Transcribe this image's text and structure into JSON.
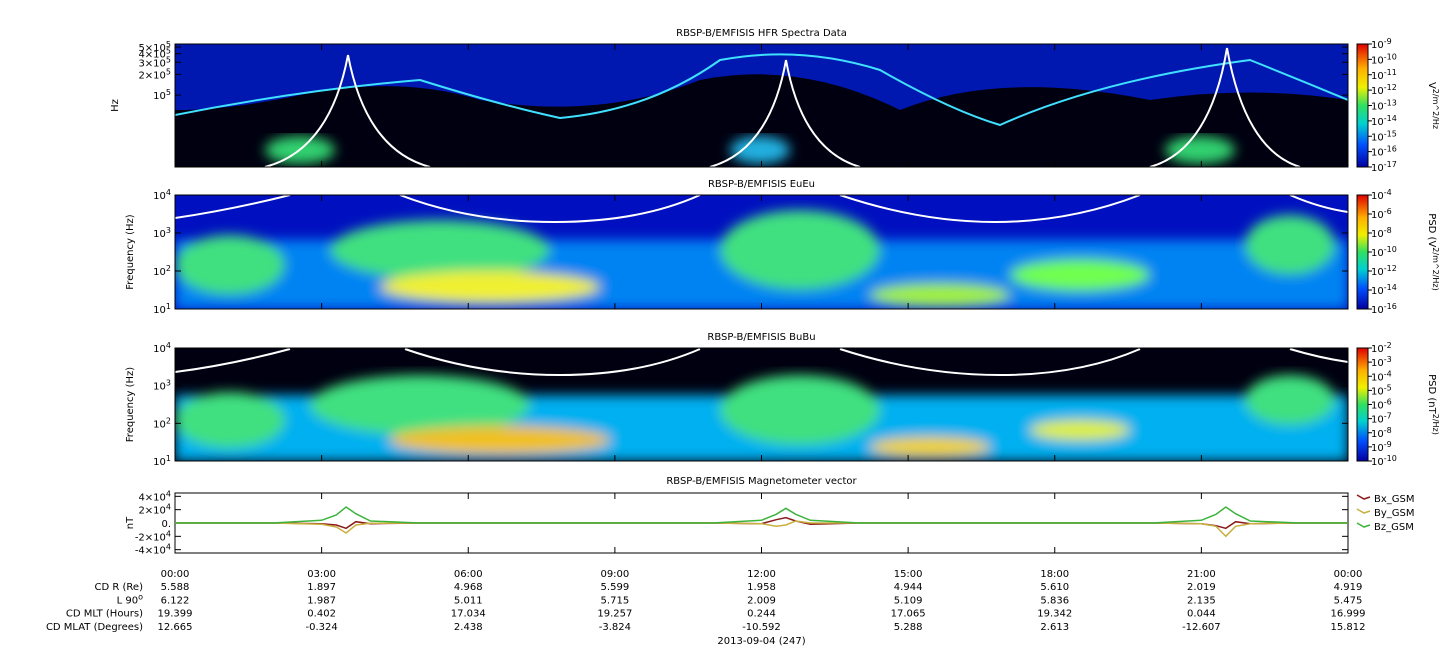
{
  "chart_data": [
    {
      "type": "spectrogram",
      "title": "RBSP-B/EMFISIS  HFR Spectra Data",
      "ylabel": "Hz",
      "zlabel": "V^2/m^2/Hz",
      "log_y": true,
      "ylim": [
        9000,
        553000
      ],
      "yticks": [
        {
          "value": 500000,
          "label": "5×10^5"
        },
        {
          "value": 400000,
          "label": "4×10^5"
        },
        {
          "value": 300000,
          "label": "3×10^5"
        },
        {
          "value": 200000,
          "label": "2×10^5"
        },
        {
          "value": 100000,
          "label": "10^5"
        }
      ],
      "zlim": [
        1e-17,
        1e-09
      ],
      "zticks": [
        {
          "value": 1e-09,
          "label": "10^-9"
        },
        {
          "value": 1e-10,
          "label": "10^-10"
        },
        {
          "value": 1e-11,
          "label": "10^-11"
        },
        {
          "value": 1e-12,
          "label": "10^-12"
        },
        {
          "value": 1e-13,
          "label": "10^-13"
        },
        {
          "value": 1e-14,
          "label": "10^-14"
        },
        {
          "value": 1e-15,
          "label": "10^-15"
        },
        {
          "value": 1e-16,
          "label": "10^-16"
        },
        {
          "value": 1e-17,
          "label": "10^-17"
        }
      ]
    },
    {
      "type": "spectrogram",
      "title": "RBSP-B/EMFISIS  EuEu",
      "ylabel": "Frequency (Hz)",
      "zlabel": "PSD (V^2/m^2/Hz)",
      "log_y": true,
      "ylim": [
        10,
        10000
      ],
      "yticks": [
        {
          "value": 10000,
          "label": "10^4"
        },
        {
          "value": 1000,
          "label": "10^3"
        },
        {
          "value": 100,
          "label": "10^2"
        },
        {
          "value": 10,
          "label": "10^1"
        }
      ],
      "zlim": [
        1e-16,
        0.0001
      ],
      "zticks": [
        {
          "value": 0.0001,
          "label": "10^-4"
        },
        {
          "value": 1e-06,
          "label": "10^-6"
        },
        {
          "value": 1e-08,
          "label": "10^-8"
        },
        {
          "value": 1e-10,
          "label": "10^-10"
        },
        {
          "value": 1e-12,
          "label": "10^-12"
        },
        {
          "value": 1e-14,
          "label": "10^-14"
        },
        {
          "value": 1e-16,
          "label": "10^-16"
        }
      ]
    },
    {
      "type": "spectrogram",
      "title": "RBSP-B/EMFISIS  BuBu",
      "ylabel": "Frequency (Hz)",
      "zlabel": "PSD (nT^2/Hz)",
      "log_y": true,
      "ylim": [
        10,
        10000
      ],
      "yticks": [
        {
          "value": 10000,
          "label": "10^4"
        },
        {
          "value": 1000,
          "label": "10^3"
        },
        {
          "value": 100,
          "label": "10^2"
        },
        {
          "value": 10,
          "label": "10^1"
        }
      ],
      "zlim": [
        1e-10,
        0.01
      ],
      "zticks": [
        {
          "value": 0.01,
          "label": "10^-2"
        },
        {
          "value": 0.001,
          "label": "10^-3"
        },
        {
          "value": 0.0001,
          "label": "10^-4"
        },
        {
          "value": 1e-05,
          "label": "10^-5"
        },
        {
          "value": 1e-06,
          "label": "10^-6"
        },
        {
          "value": 1e-07,
          "label": "10^-7"
        },
        {
          "value": 1e-08,
          "label": "10^-8"
        },
        {
          "value": 1e-09,
          "label": "10^-9"
        },
        {
          "value": 1e-10,
          "label": "10^-10"
        }
      ]
    },
    {
      "type": "line",
      "title": "RBSP-B/EMFISIS  Magnetometer vector",
      "ylabel": "nT",
      "ylim": [
        -45000,
        45000
      ],
      "yticks": [
        {
          "value": 40000,
          "label": "4×10^4"
        },
        {
          "value": 20000,
          "label": "2×10^4"
        },
        {
          "value": 0,
          "label": "0."
        },
        {
          "value": -20000,
          "label": "-2×10^4"
        },
        {
          "value": -40000,
          "label": "-4×10^4"
        }
      ],
      "xlim": [
        0,
        24
      ],
      "xticks": [
        {
          "value": 0,
          "label": "00:00"
        },
        {
          "value": 3,
          "label": "03:00"
        },
        {
          "value": 6,
          "label": "06:00"
        },
        {
          "value": 9,
          "label": "09:00"
        },
        {
          "value": 12,
          "label": "12:00"
        },
        {
          "value": 15,
          "label": "15:00"
        },
        {
          "value": 18,
          "label": "18:00"
        },
        {
          "value": 21,
          "label": "21:00"
        },
        {
          "value": 24,
          "label": "00:00"
        }
      ],
      "x": [
        0,
        2,
        3,
        3.3,
        3.5,
        3.7,
        4,
        5,
        11,
        12,
        12.3,
        12.5,
        12.7,
        13,
        14,
        20,
        21,
        21.3,
        21.5,
        21.7,
        22,
        23,
        24
      ],
      "series": [
        {
          "name": "Bx_GSM",
          "color": "#8b1a1a",
          "values": [
            0,
            0,
            -1000,
            -3000,
            -8000,
            2000,
            -1000,
            0,
            0,
            -1000,
            5000,
            8000,
            3000,
            -2000,
            0,
            0,
            -1000,
            -4000,
            -8000,
            2000,
            -1000,
            0,
            0
          ]
        },
        {
          "name": "By_GSM",
          "color": "#c8b040",
          "values": [
            0,
            0,
            -2000,
            -6000,
            -15000,
            -3000,
            -500,
            0,
            0,
            -1000,
            -5000,
            -3000,
            3000,
            0,
            0,
            0,
            -1000,
            -5000,
            -20000,
            -5000,
            -1000,
            0,
            0
          ]
        },
        {
          "name": "Bz_GSM",
          "color": "#3cb43c",
          "values": [
            0,
            0,
            4000,
            12000,
            24000,
            14000,
            3000,
            0,
            0,
            4000,
            13000,
            22000,
            13000,
            4000,
            0,
            0,
            4000,
            13000,
            24000,
            14000,
            3000,
            0,
            0
          ]
        }
      ]
    }
  ],
  "ephemeris": {
    "rows": [
      {
        "label": "CD R (Re)",
        "values": [
          "5.588",
          "1.897",
          "4.968",
          "5.599",
          "1.958",
          "4.944",
          "5.610",
          "2.019",
          "4.919"
        ]
      },
      {
        "label": "L 90^o",
        "values": [
          "6.122",
          "1.987",
          "5.011",
          "5.715",
          "2.009",
          "5.109",
          "5.836",
          "2.135",
          "5.475"
        ]
      },
      {
        "label": "CD MLT (Hours)",
        "values": [
          "19.399",
          "0.402",
          "17.034",
          "19.257",
          "0.244",
          "17.065",
          "19.342",
          "0.044",
          "16.999"
        ]
      },
      {
        "label": "CD MLAT (Degrees)",
        "values": [
          "12.665",
          "-0.324",
          "2.438",
          "-3.824",
          "-10.592",
          "5.288",
          "2.613",
          "-12.607",
          "15.812"
        ]
      }
    ],
    "date": "2013-09-04 (247)"
  }
}
